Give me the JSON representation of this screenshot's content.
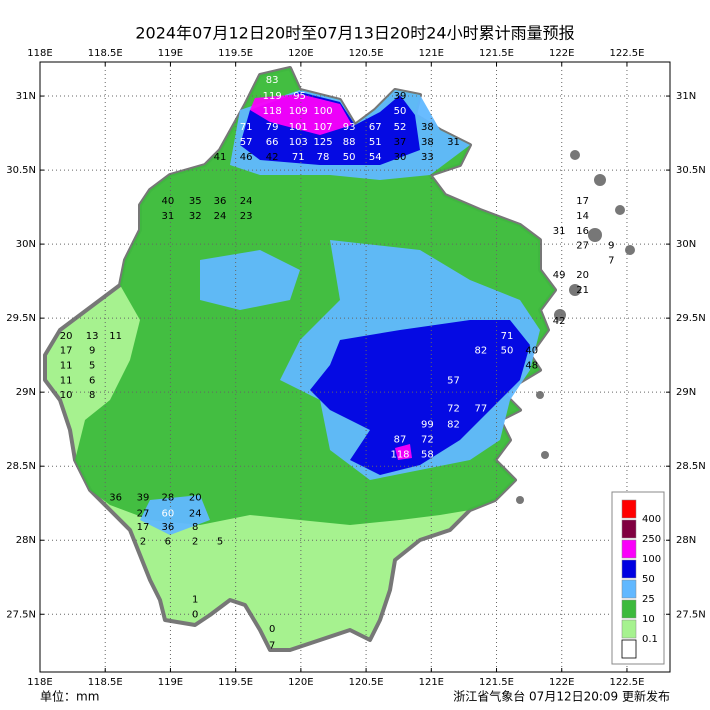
{
  "title": "2024年07月12日20时至07月13日20时24小时累计雨量预报",
  "unit_label": "单位：mm",
  "footer": "浙江省气象台 07月12日20:09 更新发布",
  "map": {
    "xlim": [
      118,
      122.83
    ],
    "ylim": [
      27.11,
      31.23
    ],
    "grid": true,
    "xticks": [
      {
        "value": 118,
        "label": "118E"
      },
      {
        "value": 118.5,
        "label": "118.5E"
      },
      {
        "value": 119,
        "label": "119E"
      },
      {
        "value": 119.5,
        "label": "119.5E"
      },
      {
        "value": 120,
        "label": "120E"
      },
      {
        "value": 120.5,
        "label": "120.5E"
      },
      {
        "value": 121,
        "label": "121E"
      },
      {
        "value": 121.5,
        "label": "121.5E"
      },
      {
        "value": 122,
        "label": "122E"
      },
      {
        "value": 122.5,
        "label": "122.5E"
      }
    ],
    "yticks": [
      {
        "value": 31,
        "label": "31N"
      },
      {
        "value": 30.5,
        "label": "30.5N"
      },
      {
        "value": 30,
        "label": "30N"
      },
      {
        "value": 29.5,
        "label": "29.5N"
      },
      {
        "value": 29,
        "label": "29N"
      },
      {
        "value": 28.5,
        "label": "28.5N"
      },
      {
        "value": 28,
        "label": "28N"
      },
      {
        "value": 27.5,
        "label": "27.5N"
      }
    ],
    "legend": {
      "corner": "bottom-right",
      "levels": [
        {
          "value": 400,
          "color": "#ff0000"
        },
        {
          "value": 250,
          "color": "#800040"
        },
        {
          "value": 100,
          "color": "#fa00fa"
        },
        {
          "value": 50,
          "color": "#0000e1"
        },
        {
          "value": 25,
          "color": "#61b8ff"
        },
        {
          "value": 10,
          "color": "#3dba3d"
        },
        {
          "value": 0.1,
          "color": "#a6f28f"
        }
      ]
    },
    "stations": [
      {
        "lon": 119.78,
        "lat": 31.11,
        "value": 83
      },
      {
        "lon": 119.78,
        "lat": 31.0,
        "value": 119
      },
      {
        "lon": 119.99,
        "lat": 31.0,
        "value": 95
      },
      {
        "lon": 120.76,
        "lat": 31.0,
        "value": 39
      },
      {
        "lon": 120.76,
        "lat": 30.9,
        "value": 50
      },
      {
        "lon": 119.78,
        "lat": 30.9,
        "value": 118
      },
      {
        "lon": 119.98,
        "lat": 30.9,
        "value": 109
      },
      {
        "lon": 120.17,
        "lat": 30.9,
        "value": 100
      },
      {
        "lon": 119.58,
        "lat": 30.79,
        "value": 71
      },
      {
        "lon": 119.78,
        "lat": 30.79,
        "value": 79
      },
      {
        "lon": 119.98,
        "lat": 30.79,
        "value": 101
      },
      {
        "lon": 120.17,
        "lat": 30.79,
        "value": 107
      },
      {
        "lon": 120.37,
        "lat": 30.79,
        "value": 93
      },
      {
        "lon": 120.57,
        "lat": 30.79,
        "value": 67
      },
      {
        "lon": 120.76,
        "lat": 30.79,
        "value": 52
      },
      {
        "lon": 120.97,
        "lat": 30.79,
        "value": 38
      },
      {
        "lon": 119.58,
        "lat": 30.69,
        "value": 57
      },
      {
        "lon": 119.78,
        "lat": 30.69,
        "value": 66
      },
      {
        "lon": 119.98,
        "lat": 30.69,
        "value": 103
      },
      {
        "lon": 120.17,
        "lat": 30.69,
        "value": 125
      },
      {
        "lon": 120.37,
        "lat": 30.69,
        "value": 88
      },
      {
        "lon": 120.57,
        "lat": 30.69,
        "value": 51
      },
      {
        "lon": 120.76,
        "lat": 30.69,
        "value": 37
      },
      {
        "lon": 120.97,
        "lat": 30.69,
        "value": 38
      },
      {
        "lon": 121.17,
        "lat": 30.69,
        "value": 31
      },
      {
        "lon": 119.38,
        "lat": 30.59,
        "value": 41
      },
      {
        "lon": 119.58,
        "lat": 30.59,
        "value": 46
      },
      {
        "lon": 119.78,
        "lat": 30.59,
        "value": 42
      },
      {
        "lon": 119.98,
        "lat": 30.59,
        "value": 71
      },
      {
        "lon": 120.17,
        "lat": 30.59,
        "value": 78
      },
      {
        "lon": 120.37,
        "lat": 30.59,
        "value": 50
      },
      {
        "lon": 120.57,
        "lat": 30.59,
        "value": 54
      },
      {
        "lon": 120.76,
        "lat": 30.59,
        "value": 30
      },
      {
        "lon": 120.97,
        "lat": 30.59,
        "value": 33
      },
      {
        "lon": 118.98,
        "lat": 30.29,
        "value": 40
      },
      {
        "lon": 119.19,
        "lat": 30.29,
        "value": 35
      },
      {
        "lon": 119.38,
        "lat": 30.29,
        "value": 36
      },
      {
        "lon": 119.58,
        "lat": 30.29,
        "value": 24
      },
      {
        "lon": 118.98,
        "lat": 30.19,
        "value": 31
      },
      {
        "lon": 119.19,
        "lat": 30.19,
        "value": 32
      },
      {
        "lon": 119.38,
        "lat": 30.19,
        "value": 24
      },
      {
        "lon": 119.58,
        "lat": 30.19,
        "value": 23
      },
      {
        "lon": 122.16,
        "lat": 30.29,
        "value": 17
      },
      {
        "lon": 122.16,
        "lat": 30.19,
        "value": 14
      },
      {
        "lon": 121.98,
        "lat": 30.09,
        "value": 31
      },
      {
        "lon": 122.16,
        "lat": 30.09,
        "value": 16
      },
      {
        "lon": 122.16,
        "lat": 29.99,
        "value": 27
      },
      {
        "lon": 122.38,
        "lat": 29.99,
        "value": 9
      },
      {
        "lon": 122.38,
        "lat": 29.89,
        "value": 7
      },
      {
        "lon": 121.98,
        "lat": 29.79,
        "value": 49
      },
      {
        "lon": 122.16,
        "lat": 29.79,
        "value": 20
      },
      {
        "lon": 122.16,
        "lat": 29.69,
        "value": 21
      },
      {
        "lon": 118.2,
        "lat": 29.38,
        "value": 20
      },
      {
        "lon": 118.4,
        "lat": 29.38,
        "value": 13
      },
      {
        "lon": 118.58,
        "lat": 29.38,
        "value": 11
      },
      {
        "lon": 118.2,
        "lat": 29.28,
        "value": 17
      },
      {
        "lon": 118.4,
        "lat": 29.28,
        "value": 9
      },
      {
        "lon": 118.2,
        "lat": 29.18,
        "value": 11
      },
      {
        "lon": 118.4,
        "lat": 29.18,
        "value": 5
      },
      {
        "lon": 118.2,
        "lat": 29.08,
        "value": 11
      },
      {
        "lon": 118.4,
        "lat": 29.08,
        "value": 6
      },
      {
        "lon": 118.2,
        "lat": 28.98,
        "value": 10
      },
      {
        "lon": 118.4,
        "lat": 28.98,
        "value": 8
      },
      {
        "lon": 121.98,
        "lat": 29.48,
        "value": 42
      },
      {
        "lon": 121.38,
        "lat": 29.28,
        "value": 82
      },
      {
        "lon": 121.58,
        "lat": 29.38,
        "value": 71
      },
      {
        "lon": 121.58,
        "lat": 29.28,
        "value": 50
      },
      {
        "lon": 121.77,
        "lat": 29.28,
        "value": 40
      },
      {
        "lon": 121.77,
        "lat": 29.18,
        "value": 48
      },
      {
        "lon": 121.17,
        "lat": 29.08,
        "value": 57
      },
      {
        "lon": 121.17,
        "lat": 28.89,
        "value": 72
      },
      {
        "lon": 121.38,
        "lat": 28.89,
        "value": 77
      },
      {
        "lon": 120.97,
        "lat": 28.78,
        "value": 99
      },
      {
        "lon": 121.17,
        "lat": 28.78,
        "value": 82
      },
      {
        "lon": 120.76,
        "lat": 28.68,
        "value": 87
      },
      {
        "lon": 120.97,
        "lat": 28.68,
        "value": 72
      },
      {
        "lon": 120.76,
        "lat": 28.58,
        "value": 118
      },
      {
        "lon": 120.97,
        "lat": 28.58,
        "value": 58
      },
      {
        "lon": 118.58,
        "lat": 28.29,
        "value": 36
      },
      {
        "lon": 118.79,
        "lat": 28.29,
        "value": 39
      },
      {
        "lon": 118.98,
        "lat": 28.29,
        "value": 28
      },
      {
        "lon": 119.19,
        "lat": 28.29,
        "value": 20
      },
      {
        "lon": 118.79,
        "lat": 28.18,
        "value": 27
      },
      {
        "lon": 118.98,
        "lat": 28.18,
        "value": 60
      },
      {
        "lon": 119.19,
        "lat": 28.18,
        "value": 24
      },
      {
        "lon": 118.79,
        "lat": 28.09,
        "value": 17
      },
      {
        "lon": 118.98,
        "lat": 28.09,
        "value": 36
      },
      {
        "lon": 119.19,
        "lat": 28.09,
        "value": 8
      },
      {
        "lon": 118.79,
        "lat": 27.99,
        "value": 2
      },
      {
        "lon": 118.98,
        "lat": 27.99,
        "value": 6
      },
      {
        "lon": 119.19,
        "lat": 27.99,
        "value": 2
      },
      {
        "lon": 119.38,
        "lat": 27.99,
        "value": 5
      },
      {
        "lon": 119.19,
        "lat": 27.6,
        "value": 1
      },
      {
        "lon": 119.19,
        "lat": 27.5,
        "value": 0
      },
      {
        "lon": 119.78,
        "lat": 27.4,
        "value": 0
      },
      {
        "lon": 119.78,
        "lat": 27.29,
        "value": 7
      }
    ]
  }
}
